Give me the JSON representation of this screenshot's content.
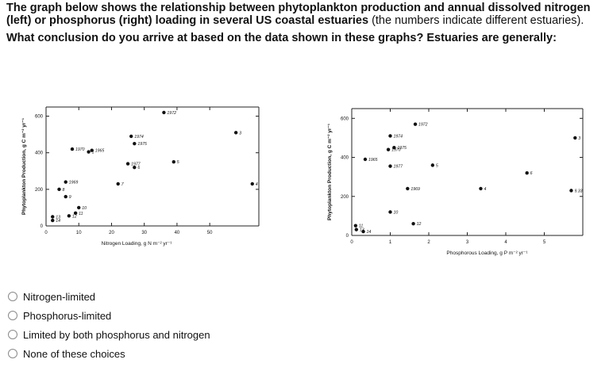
{
  "question": {
    "intro_bold": "The graph below shows the relationship between phytoplankton production and annual dissolved nitrogen (left) or phosphorus (right) loading in several US coastal estuaries",
    "intro_normal": "(the numbers indicate different estuaries).",
    "prompt": "What conclusion do you arrive at based on the data shown in these graphs? Estuaries are generally:"
  },
  "options": [
    {
      "label": "Nitrogen-limited"
    },
    {
      "label": "Phosphorus-limited"
    },
    {
      "label": "Limited by both phosphorus and nitrogen"
    },
    {
      "label": "None of these choices"
    }
  ],
  "chart_data": [
    {
      "type": "scatter",
      "title": "",
      "xlabel": "Nitrogen Loading, g N m⁻² yr⁻¹",
      "ylabel": "Phytoplankton Production, g C m⁻² yr⁻¹",
      "xlim": [
        0,
        65
      ],
      "ylim": [
        0,
        650
      ],
      "xticks": [
        0,
        10,
        20,
        30,
        40,
        50
      ],
      "yticks": [
        0,
        200,
        400,
        600
      ],
      "points": [
        {
          "x": 13,
          "y": 405,
          "label": "1"
        },
        {
          "x": 8,
          "y": 420,
          "label": "1970"
        },
        {
          "x": 14,
          "y": 413,
          "label": "1965"
        },
        {
          "x": 26,
          "y": 490,
          "label": "1974"
        },
        {
          "x": 27,
          "y": 450,
          "label": "1975"
        },
        {
          "x": 25,
          "y": 340,
          "label": "1977"
        },
        {
          "x": 36,
          "y": 620,
          "label": "1972"
        },
        {
          "x": 27,
          "y": 320,
          "label": "6"
        },
        {
          "x": 39,
          "y": 350,
          "label": "5"
        },
        {
          "x": 22,
          "y": 230,
          "label": "7"
        },
        {
          "x": 58,
          "y": 510,
          "label": "3"
        },
        {
          "x": 63,
          "y": 230,
          "label": "4"
        },
        {
          "x": 6,
          "y": 240,
          "label": "1969"
        },
        {
          "x": 4,
          "y": 200,
          "label": "8"
        },
        {
          "x": 6,
          "y": 160,
          "label": "9"
        },
        {
          "x": 10,
          "y": 100,
          "label": "10"
        },
        {
          "x": 9,
          "y": 70,
          "label": "11"
        },
        {
          "x": 7,
          "y": 55,
          "label": "12"
        },
        {
          "x": 2,
          "y": 50,
          "label": "13"
        },
        {
          "x": 2,
          "y": 30,
          "label": "14"
        }
      ]
    },
    {
      "type": "scatter",
      "title": "",
      "xlabel": "Phosphorous Loading, g P m⁻² yr⁻¹",
      "ylabel": "Phytoplankton Production, g C m⁻² yr⁻¹",
      "xlim": [
        0,
        6
      ],
      "ylim": [
        0,
        650
      ],
      "xticks": [
        0,
        1,
        2,
        3,
        4,
        5
      ],
      "yticks": [
        0,
        200,
        400,
        600
      ],
      "points": [
        {
          "x": 1.65,
          "y": 570,
          "label": "1972"
        },
        {
          "x": 1.0,
          "y": 510,
          "label": "1974"
        },
        {
          "x": 1.1,
          "y": 450,
          "label": "1975"
        },
        {
          "x": 0.95,
          "y": 440,
          "label": "1970"
        },
        {
          "x": 0.35,
          "y": 390,
          "label": "1965"
        },
        {
          "x": 1.0,
          "y": 355,
          "label": "1977"
        },
        {
          "x": 2.1,
          "y": 360,
          "label": "5"
        },
        {
          "x": 4.55,
          "y": 320,
          "label": "6"
        },
        {
          "x": 3.35,
          "y": 240,
          "label": "4"
        },
        {
          "x": 5.8,
          "y": 500,
          "label": "3"
        },
        {
          "x": 5.7,
          "y": 230,
          "label": "9.33"
        },
        {
          "x": 1.45,
          "y": 240,
          "label": "1969"
        },
        {
          "x": 1.0,
          "y": 120,
          "label": "10"
        },
        {
          "x": 1.6,
          "y": 60,
          "label": "12"
        },
        {
          "x": 0.1,
          "y": 50,
          "label": "11"
        },
        {
          "x": 0.12,
          "y": 30,
          "label": "13"
        },
        {
          "x": 0.3,
          "y": 20,
          "label": "14"
        }
      ]
    }
  ]
}
